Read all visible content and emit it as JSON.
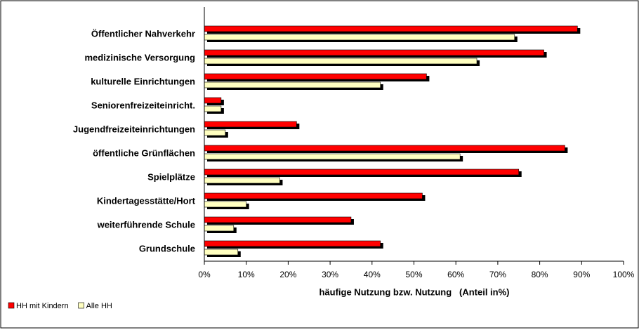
{
  "chart_data": {
    "type": "hbar",
    "xlabel": "häufige Nutzung bzw. Nutzung   (Anteil in%)",
    "categories": [
      "Öffentlicher Nahverkehr",
      "medizinische Versorgung",
      "kulturelle Einrichtungen",
      "Seniorenfreizeiteinricht.",
      "Jugendfreizeiteinrichtungen",
      "öffentliche Grünflächen",
      "Spielplätze",
      "Kindertagesstätte/Hort",
      "weiterführende Schule",
      "Grundschule"
    ],
    "series": [
      {
        "name": "HH mit Kindern",
        "color": "#ff0000",
        "values": [
          89,
          81,
          53,
          4,
          22,
          86,
          75,
          52,
          35,
          42
        ]
      },
      {
        "name": "Alle HH",
        "color": "#ffffc0",
        "values": [
          74,
          65,
          42,
          4,
          5,
          61,
          18,
          10,
          7,
          8
        ]
      }
    ],
    "xlim": [
      0,
      100
    ],
    "xticks": [
      {
        "value": 0,
        "label": "0%"
      },
      {
        "value": 10,
        "label": "10%"
      },
      {
        "value": 20,
        "label": "20%"
      },
      {
        "value": 30,
        "label": "30%"
      },
      {
        "value": 40,
        "label": "40%"
      },
      {
        "value": 50,
        "label": "50%"
      },
      {
        "value": 60,
        "label": "60%"
      },
      {
        "value": 70,
        "label": "70%"
      },
      {
        "value": 80,
        "label": "80%"
      },
      {
        "value": 90,
        "label": "90%"
      },
      {
        "value": 100,
        "label": "100%"
      }
    ],
    "grid": false,
    "legend": "bottom-left"
  }
}
